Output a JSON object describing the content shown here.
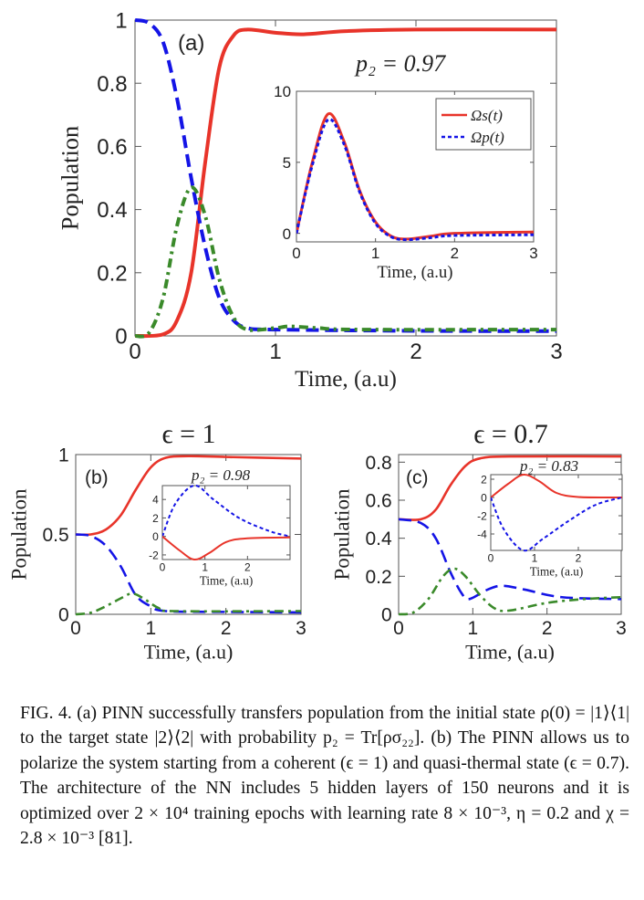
{
  "colors": {
    "red": "#e8342a",
    "blue": "#1414e6",
    "green": "#3a8a2a",
    "axis": "#555555"
  },
  "chart_data": [
    {
      "id": "a",
      "type": "line",
      "panel_label": "(a)",
      "annotation": "p₂ = 0.97",
      "title": "",
      "xlabel": "Time, (a.u)",
      "ylabel": "Population",
      "xlim": [
        0,
        3
      ],
      "ylim": [
        0,
        1
      ],
      "xticks": [
        0,
        1,
        2,
        3
      ],
      "yticks": [
        0,
        0.2,
        0.4,
        0.6,
        0.8,
        1
      ],
      "ytick_labels": [
        "0",
        "0.2",
        "0.4",
        "0.6",
        "0.8",
        "1"
      ],
      "series": [
        {
          "color": "red",
          "style": "solid",
          "x": [
            0,
            0.2,
            0.3,
            0.4,
            0.5,
            0.6,
            0.7,
            0.8,
            1.0,
            1.2,
            1.5,
            2,
            3
          ],
          "y": [
            0,
            0.005,
            0.05,
            0.2,
            0.55,
            0.85,
            0.95,
            0.97,
            0.96,
            0.955,
            0.965,
            0.97,
            0.97
          ]
        },
        {
          "color": "blue",
          "style": "dash",
          "x": [
            0,
            0.1,
            0.2,
            0.3,
            0.4,
            0.5,
            0.6,
            0.7,
            0.8,
            1,
            2,
            3
          ],
          "y": [
            1,
            0.99,
            0.93,
            0.75,
            0.5,
            0.28,
            0.12,
            0.05,
            0.025,
            0.02,
            0.016,
            0.015
          ]
        },
        {
          "color": "green",
          "style": "dashdot",
          "x": [
            0,
            0.1,
            0.2,
            0.3,
            0.4,
            0.5,
            0.6,
            0.7,
            0.8,
            1.0,
            1.1,
            1.3,
            1.6,
            3
          ],
          "y": [
            0,
            0.01,
            0.12,
            0.35,
            0.47,
            0.38,
            0.18,
            0.06,
            0.02,
            0.025,
            0.03,
            0.025,
            0.02,
            0.02
          ]
        }
      ],
      "inset": {
        "xlabel": "Time, (a.u)",
        "xlim": [
          0,
          3
        ],
        "ylim": [
          -0.6,
          10
        ],
        "xticks": [
          0,
          1,
          2,
          3
        ],
        "yticks": [
          0,
          5,
          10
        ],
        "legend": [
          "Ωs(t)",
          "Ωp(t)"
        ],
        "legend_placement": "top-right",
        "series": [
          {
            "name": "Ωs(t)",
            "color": "red",
            "style": "solid",
            "x": [
              0,
              0.2,
              0.4,
              0.6,
              0.8,
              1.0,
              1.2,
              1.4,
              1.7,
              2,
              3
            ],
            "y": [
              0,
              5,
              8.4,
              6.5,
              3,
              0.8,
              -0.2,
              -0.4,
              -0.2,
              0,
              0.1
            ]
          },
          {
            "name": "Ωp(t)",
            "color": "blue",
            "style": "dot",
            "x": [
              0,
              0.2,
              0.4,
              0.6,
              0.8,
              1.0,
              1.2,
              1.4,
              1.7,
              2,
              3
            ],
            "y": [
              0,
              4.8,
              8.0,
              6.3,
              2.9,
              0.7,
              -0.25,
              -0.45,
              -0.3,
              -0.15,
              -0.1
            ]
          }
        ]
      }
    },
    {
      "id": "b",
      "type": "line",
      "panel_label": "(b)",
      "annotation": "p₂ = 0.98",
      "title": "ϵ = 1",
      "xlabel": "Time, (a.u)",
      "ylabel": "Population",
      "xlim": [
        0,
        3
      ],
      "ylim": [
        0,
        1
      ],
      "xticks": [
        0,
        1,
        2,
        3
      ],
      "yticks": [
        0,
        0.5,
        1
      ],
      "ytick_labels": [
        "0",
        "0.5",
        "1"
      ],
      "series": [
        {
          "color": "red",
          "style": "solid",
          "x": [
            0,
            0.2,
            0.4,
            0.6,
            0.8,
            1.0,
            1.2,
            1.5,
            2,
            3
          ],
          "y": [
            0.5,
            0.5,
            0.53,
            0.62,
            0.78,
            0.92,
            0.98,
            0.99,
            0.985,
            0.975
          ]
        },
        {
          "color": "blue",
          "style": "dash",
          "x": [
            0,
            0.2,
            0.4,
            0.6,
            0.8,
            1.0,
            1.2,
            2,
            3
          ],
          "y": [
            0.5,
            0.49,
            0.43,
            0.3,
            0.12,
            0.05,
            0.02,
            0.015,
            0.012
          ]
        },
        {
          "color": "green",
          "style": "dashdot",
          "x": [
            0,
            0.2,
            0.4,
            0.6,
            0.75,
            0.9,
            1.1,
            1.3,
            3
          ],
          "y": [
            0,
            0.01,
            0.05,
            0.1,
            0.13,
            0.1,
            0.04,
            0.02,
            0.02
          ]
        }
      ],
      "inset": {
        "xlabel": "Time, (a.u)",
        "xlim": [
          0,
          3
        ],
        "ylim": [
          -2.5,
          5.5
        ],
        "xticks": [
          0,
          1,
          2
        ],
        "yticks": [
          -2,
          0,
          2,
          4
        ],
        "series": [
          {
            "color": "blue",
            "style": "dot",
            "x": [
              0,
              0.3,
              0.75,
              1.2,
              1.8,
              2.5,
              3
            ],
            "y": [
              0,
              3.5,
              5.5,
              4,
              2,
              0.6,
              0
            ]
          },
          {
            "color": "red",
            "style": "solid",
            "x": [
              0,
              0.4,
              0.75,
              1.1,
              1.5,
              2,
              3
            ],
            "y": [
              0,
              -1.5,
              -2.5,
              -1.8,
              -0.6,
              -0.2,
              -0.1
            ]
          }
        ]
      }
    },
    {
      "id": "c",
      "type": "line",
      "panel_label": "(c)",
      "annotation": "p₂ = 0.83",
      "title": "ϵ = 0.7",
      "xlabel": "Time, (a.u)",
      "ylabel": "Population",
      "xlim": [
        0,
        3
      ],
      "ylim": [
        0,
        0.84
      ],
      "xticks": [
        0,
        1,
        2,
        3
      ],
      "yticks": [
        0,
        0.2,
        0.4,
        0.6,
        0.8
      ],
      "ytick_labels": [
        "0",
        "0.2",
        "0.4",
        "0.6",
        "0.8"
      ],
      "series": [
        {
          "color": "red",
          "style": "solid",
          "x": [
            0,
            0.3,
            0.5,
            0.7,
            0.9,
            1.1,
            1.5,
            3
          ],
          "y": [
            0.5,
            0.5,
            0.55,
            0.68,
            0.78,
            0.82,
            0.83,
            0.83
          ]
        },
        {
          "color": "blue",
          "style": "dash",
          "x": [
            0,
            0.3,
            0.5,
            0.7,
            0.85,
            0.95,
            1.2,
            1.4,
            1.7,
            2.2,
            3
          ],
          "y": [
            0.5,
            0.48,
            0.4,
            0.22,
            0.11,
            0.08,
            0.13,
            0.15,
            0.13,
            0.09,
            0.08
          ]
        },
        {
          "color": "green",
          "style": "dashdot",
          "x": [
            0,
            0.2,
            0.4,
            0.6,
            0.75,
            0.9,
            1.1,
            1.3,
            1.5,
            2,
            2.5,
            3
          ],
          "y": [
            0,
            0.01,
            0.08,
            0.2,
            0.24,
            0.2,
            0.1,
            0.03,
            0.02,
            0.06,
            0.08,
            0.09
          ]
        }
      ],
      "inset": {
        "xlabel": "Time, (a.u)",
        "xlim": [
          0,
          3
        ],
        "ylim": [
          -5.8,
          2.5
        ],
        "xticks": [
          0,
          1,
          2
        ],
        "yticks": [
          -4,
          -2,
          0,
          2
        ],
        "series": [
          {
            "color": "red",
            "style": "solid",
            "x": [
              0,
              0.4,
              0.75,
              1.1,
              1.5,
              2,
              3
            ],
            "y": [
              0,
              1.5,
              2.5,
              1.8,
              0.5,
              0.05,
              0
            ]
          },
          {
            "color": "blue",
            "style": "dot",
            "x": [
              0,
              0.3,
              0.75,
              1.2,
              1.8,
              2.4,
              3
            ],
            "y": [
              0,
              -3.5,
              -5.8,
              -4.5,
              -2.5,
              -0.8,
              0
            ]
          }
        ]
      }
    }
  ],
  "caption": "FIG. 4.  (a) PINN successfully transfers population from the initial state ρ(0) = |1⟩⟨1| to the target state |2⟩⟨2| with probability p₂ = Tr[ρσ₂₂]. (b) The PINN allows us to polarize the system starting from a coherent (ϵ = 1) and quasi-thermal state (ϵ = 0.7). The architecture of the NN includes 5 hidden layers of 150 neurons and it is optimized over 2 × 10⁴ training epochs with learning rate 8 × 10⁻³, η = 0.2 and χ = 2.8 × 10⁻³ [81]."
}
